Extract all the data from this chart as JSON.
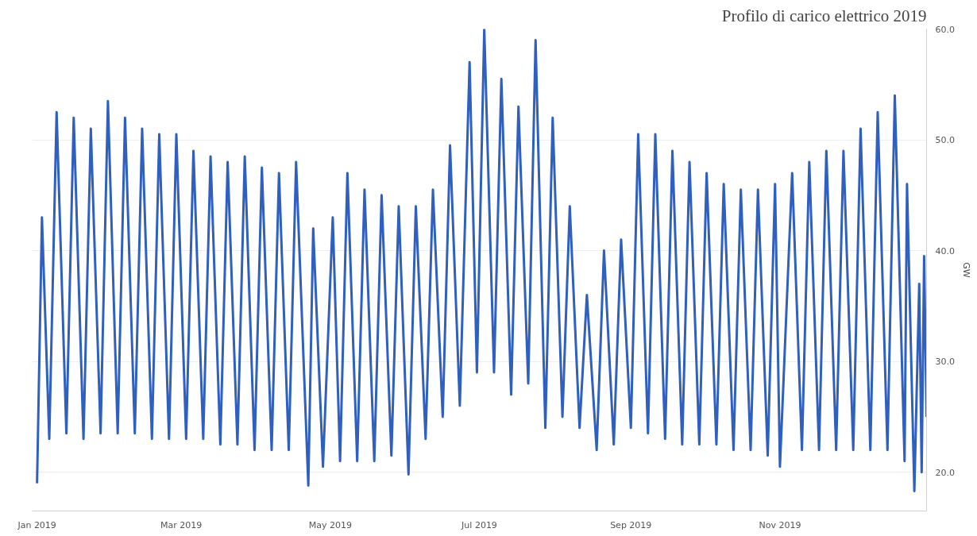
{
  "chart_data": {
    "type": "line",
    "title": "Profilo di carico elettrico 2019",
    "ylabel": "GW",
    "x": [
      "2019-01-01",
      "2019-01-03",
      "2019-01-06",
      "2019-01-09",
      "2019-01-13",
      "2019-01-16",
      "2019-01-20",
      "2019-01-23",
      "2019-01-27",
      "2019-01-30",
      "2019-02-03",
      "2019-02-06",
      "2019-02-10",
      "2019-02-13",
      "2019-02-17",
      "2019-02-20",
      "2019-02-24",
      "2019-02-27",
      "2019-03-03",
      "2019-03-06",
      "2019-03-10",
      "2019-03-13",
      "2019-03-17",
      "2019-03-20",
      "2019-03-24",
      "2019-03-27",
      "2019-03-31",
      "2019-04-03",
      "2019-04-07",
      "2019-04-10",
      "2019-04-14",
      "2019-04-17",
      "2019-04-22",
      "2019-04-24",
      "2019-04-28",
      "2019-05-02",
      "2019-05-05",
      "2019-05-08",
      "2019-05-12",
      "2019-05-15",
      "2019-05-19",
      "2019-05-22",
      "2019-05-26",
      "2019-05-29",
      "2019-06-02",
      "2019-06-05",
      "2019-06-09",
      "2019-06-12",
      "2019-06-16",
      "2019-06-19",
      "2019-06-23",
      "2019-06-27",
      "2019-06-30",
      "2019-07-03",
      "2019-07-07",
      "2019-07-10",
      "2019-07-14",
      "2019-07-17",
      "2019-07-21",
      "2019-07-24",
      "2019-07-28",
      "2019-07-31",
      "2019-08-04",
      "2019-08-07",
      "2019-08-11",
      "2019-08-14",
      "2019-08-18",
      "2019-08-21",
      "2019-08-25",
      "2019-08-28",
      "2019-09-01",
      "2019-09-04",
      "2019-09-08",
      "2019-09-11",
      "2019-09-15",
      "2019-09-18",
      "2019-09-22",
      "2019-09-25",
      "2019-09-29",
      "2019-10-02",
      "2019-10-06",
      "2019-10-09",
      "2019-10-13",
      "2019-10-16",
      "2019-10-20",
      "2019-10-23",
      "2019-10-27",
      "2019-10-30",
      "2019-11-01",
      "2019-11-06",
      "2019-11-10",
      "2019-11-13",
      "2019-11-17",
      "2019-11-20",
      "2019-11-24",
      "2019-11-27",
      "2019-12-01",
      "2019-12-04",
      "2019-12-08",
      "2019-12-11",
      "2019-12-15",
      "2019-12-18",
      "2019-12-22",
      "2019-12-23",
      "2019-12-26",
      "2019-12-28",
      "2019-12-29",
      "2019-12-30",
      "2019-12-31"
    ],
    "series": [
      {
        "color": "#2f5fbf",
        "values": [
          19,
          43,
          23,
          52.5,
          23.5,
          52,
          23,
          51,
          23.5,
          53.5,
          23.5,
          52,
          23.5,
          51,
          23,
          50.5,
          23,
          50.5,
          23,
          49,
          23,
          48.5,
          22.5,
          48,
          22.5,
          48.5,
          22,
          47.5,
          22,
          47,
          22,
          48,
          18.8,
          42,
          20.5,
          43,
          21,
          47,
          21,
          45.5,
          21,
          45,
          21.5,
          44,
          19.8,
          44,
          23,
          45.5,
          25,
          49.5,
          26,
          57,
          29,
          60,
          29,
          55.5,
          27,
          53,
          28,
          59,
          24,
          52,
          25,
          44,
          24,
          36,
          22,
          40,
          22.5,
          41,
          24,
          50.5,
          23.5,
          50.5,
          23,
          49,
          22.5,
          48,
          22.5,
          47,
          22.5,
          46,
          22,
          45.5,
          22,
          45.5,
          21.5,
          46,
          20.5,
          47,
          22,
          48,
          22,
          49,
          22,
          49,
          22,
          51,
          22,
          52.5,
          22,
          54,
          21,
          46,
          18.3,
          37,
          20,
          39.5,
          25
        ]
      }
    ],
    "xlim": [
      "2018-12-30",
      "2019-12-31"
    ],
    "xticks": [
      {
        "value": "2019-01-01",
        "label": "Jan 2019"
      },
      {
        "value": "2019-03-01",
        "label": "Mar 2019"
      },
      {
        "value": "2019-05-01",
        "label": "May 2019"
      },
      {
        "value": "2019-07-01",
        "label": "Jul 2019"
      },
      {
        "value": "2019-09-01",
        "label": "Sep 2019"
      },
      {
        "value": "2019-11-01",
        "label": "Nov 2019"
      }
    ],
    "ylim": [
      16.5,
      60
    ],
    "yticks": [
      {
        "value": 20,
        "label": "20.0"
      },
      {
        "value": 30,
        "label": "30.0"
      },
      {
        "value": 40,
        "label": "40.0"
      },
      {
        "value": 50,
        "label": "50.0"
      },
      {
        "value": 60,
        "label": "60.0"
      }
    ],
    "grid": "y",
    "marker": "none",
    "line_style": "solid"
  }
}
